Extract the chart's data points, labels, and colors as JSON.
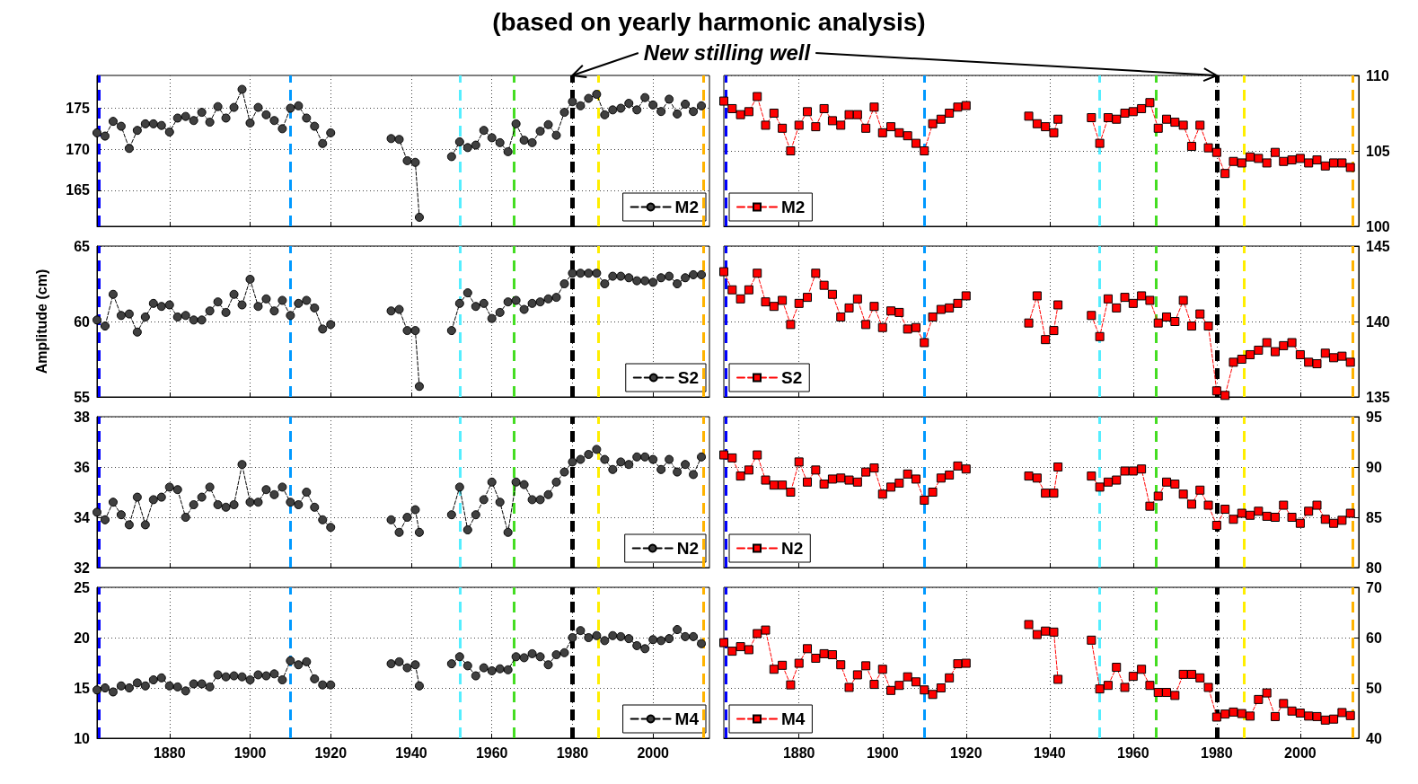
{
  "chart_data": [
    {
      "type": "line",
      "title": "(based on yearly harmonic analysis)",
      "annotations": [
        {
          "text": "New stilling well",
          "x": 1980,
          "y": 179
        }
      ],
      "x": [
        1862,
        1864,
        1866,
        1868,
        1870,
        1872,
        1874,
        1876,
        1878,
        1880,
        1882,
        1884,
        1886,
        1888,
        1890,
        1892,
        1894,
        1896,
        1898,
        1900,
        1902,
        1904,
        1906,
        1908,
        1910,
        1912,
        1914,
        1916,
        1918,
        1920,
        1928,
        1935,
        1937,
        1939,
        1941,
        1942,
        1946,
        1950,
        1952,
        1954,
        1956,
        1958,
        1960,
        1962,
        1964,
        1966,
        1968,
        1970,
        1972,
        1974,
        1976,
        1978,
        1980,
        1982,
        1984,
        1986,
        1988,
        1990,
        1992,
        1994,
        1996,
        1998,
        2000,
        2002,
        2004,
        2006,
        2008,
        2010,
        2012
      ],
      "xlim": [
        1862,
        2014
      ],
      "xticks": [
        1880,
        1900,
        1920,
        1940,
        1960,
        1980,
        2000
      ],
      "ylim": [
        160.6,
        179
      ],
      "yticks": [
        165,
        170,
        175
      ],
      "tick_labels": "y",
      "grid": true,
      "legend": "bottom right",
      "marker": "circle",
      "line_style": "dashed",
      "series": [
        {
          "name": "M2",
          "color": "#404040",
          "values": [
            172,
            171.6,
            173.4,
            172.8,
            170.1,
            172.3,
            173.1,
            173.1,
            172.9,
            172.1,
            173.8,
            174.0,
            173.5,
            174.5,
            173.3,
            175.2,
            173.8,
            175.1,
            177.3,
            173.2,
            175.1,
            174.2,
            173.5,
            172.5,
            175,
            175.3,
            173.8,
            172.8,
            170.7,
            172.0,
            null,
            171.3,
            171.2,
            168.6,
            168.4,
            161.7,
            null,
            169.1,
            170.9,
            170.2,
            170.5,
            172.3,
            171.4,
            170.8,
            169.7,
            173.1,
            171.1,
            170.8,
            172.2,
            173,
            171.7,
            174.5,
            175.8,
            175.3,
            176.2,
            176.7,
            174.2,
            174.8,
            175,
            175.6,
            174.8,
            176.3,
            175.4,
            174.6,
            176.1,
            174.3,
            175.5,
            174.6,
            175.3
          ]
        }
      ],
      "ref_lines": [
        {
          "axis": "x",
          "value": 1862.5,
          "color": "#0000ff",
          "line_style": "dashed"
        },
        {
          "axis": "x",
          "value": 1910,
          "color": "#0099ff",
          "line_style": "dashed"
        },
        {
          "axis": "x",
          "value": 1952,
          "color": "#55eeff",
          "line_style": "dashed"
        },
        {
          "axis": "x",
          "value": 1965.5,
          "color": "#44dd22",
          "line_style": "dashed"
        },
        {
          "axis": "x",
          "value": 1980,
          "color": "#000000",
          "line_style": "dashed"
        },
        {
          "axis": "x",
          "value": 1986.5,
          "color": "#ffee00",
          "line_style": "dashed"
        },
        {
          "axis": "x",
          "value": 2012.5,
          "color": "#ffb300",
          "line_style": "dashed"
        }
      ]
    },
    {
      "type": "line",
      "x": [
        1862,
        1864,
        1866,
        1868,
        1870,
        1872,
        1874,
        1876,
        1878,
        1880,
        1882,
        1884,
        1886,
        1888,
        1890,
        1892,
        1894,
        1896,
        1898,
        1900,
        1902,
        1904,
        1906,
        1908,
        1910,
        1912,
        1914,
        1916,
        1918,
        1920,
        1928,
        1935,
        1937,
        1939,
        1941,
        1942,
        1946,
        1950,
        1952,
        1954,
        1956,
        1958,
        1960,
        1962,
        1964,
        1966,
        1968,
        1970,
        1972,
        1974,
        1976,
        1978,
        1980,
        1982,
        1984,
        1986,
        1988,
        1990,
        1992,
        1994,
        1996,
        1998,
        2000,
        2002,
        2004,
        2006,
        2008,
        2010,
        2012
      ],
      "xlim": [
        1862,
        2014
      ],
      "xticks": [
        1880,
        1900,
        1920,
        1940,
        1960,
        1980,
        2000
      ],
      "ylim": [
        100,
        110
      ],
      "yticks": [
        100,
        105,
        110
      ],
      "tick_labels": "y",
      "grid": true,
      "legend": "bottom left",
      "marker": "square",
      "line_style": "dashed",
      "series": [
        {
          "name": "M2",
          "color": "#ff0000",
          "values": [
            108.3,
            107.8,
            107.4,
            107.6,
            108.6,
            106.7,
            107.5,
            106.5,
            105,
            106.7,
            107.6,
            106.6,
            107.8,
            107,
            106.7,
            107.4,
            107.4,
            106.5,
            107.9,
            106.2,
            106.6,
            106.2,
            106,
            105.5,
            105.0,
            106.8,
            107.1,
            107.5,
            107.9,
            108,
            null,
            107.3,
            106.8,
            106.6,
            106.2,
            107.1,
            null,
            107.2,
            105.5,
            107.2,
            107.1,
            107.5,
            107.6,
            107.8,
            108.2,
            106.5,
            107.1,
            106.9,
            106.7,
            105.3,
            106.7,
            105.2,
            104.9,
            103.5,
            104.3,
            104.2,
            104.6,
            104.5,
            104.2,
            104.9,
            104.3,
            104.4,
            104.5,
            104.2,
            104.4,
            104,
            104.2,
            104.2,
            103.9
          ]
        }
      ],
      "ref_lines": [
        {
          "axis": "x",
          "value": 1862.5,
          "color": "#0000ff",
          "line_style": "dashed"
        },
        {
          "axis": "x",
          "value": 1910,
          "color": "#0099ff",
          "line_style": "dashed"
        },
        {
          "axis": "x",
          "value": 1952,
          "color": "#55eeff",
          "line_style": "dashed"
        },
        {
          "axis": "x",
          "value": 1965.5,
          "color": "#44dd22",
          "line_style": "dashed"
        },
        {
          "axis": "x",
          "value": 1980,
          "color": "#000000",
          "line_style": "dashed"
        },
        {
          "axis": "x",
          "value": 1986.5,
          "color": "#ffee00",
          "line_style": "dashed"
        },
        {
          "axis": "x",
          "value": 2012.5,
          "color": "#ffb300",
          "line_style": "dashed"
        }
      ]
    },
    {
      "type": "line",
      "ylabel": "Amplitude (cm)",
      "x": [
        1862,
        1864,
        1866,
        1868,
        1870,
        1872,
        1874,
        1876,
        1878,
        1880,
        1882,
        1884,
        1886,
        1888,
        1890,
        1892,
        1894,
        1896,
        1898,
        1900,
        1902,
        1904,
        1906,
        1908,
        1910,
        1912,
        1914,
        1916,
        1918,
        1920,
        1928,
        1935,
        1937,
        1939,
        1941,
        1942,
        1946,
        1950,
        1952,
        1954,
        1956,
        1958,
        1960,
        1962,
        1964,
        1966,
        1968,
        1970,
        1972,
        1974,
        1976,
        1978,
        1980,
        1982,
        1984,
        1986,
        1988,
        1990,
        1992,
        1994,
        1996,
        1998,
        2000,
        2002,
        2004,
        2006,
        2008,
        2010,
        2012
      ],
      "xlim": [
        1862,
        2014
      ],
      "xticks": [
        1880,
        1900,
        1920,
        1940,
        1960,
        1980,
        2000
      ],
      "ylim": [
        55,
        65
      ],
      "yticks": [
        55,
        60,
        65
      ],
      "tick_labels": "y",
      "grid": true,
      "legend": "bottom right",
      "marker": "circle",
      "line_style": "dashed",
      "series": [
        {
          "name": "S2",
          "color": "#404040",
          "values": [
            60.1,
            59.7,
            61.8,
            60.4,
            60.5,
            59.3,
            60.3,
            61.2,
            61,
            61.1,
            60.3,
            60.4,
            60.1,
            60.1,
            60.7,
            61.3,
            60.6,
            61.8,
            61.1,
            62.8,
            61,
            61.5,
            60.7,
            61.4,
            60.4,
            61.2,
            61.4,
            60.9,
            59.5,
            59.8,
            null,
            60.7,
            60.8,
            59.4,
            59.4,
            55.7,
            null,
            59.4,
            61.2,
            61.9,
            61,
            61.2,
            60.2,
            60.6,
            61.3,
            61.4,
            60.8,
            61.2,
            61.3,
            61.5,
            61.6,
            62.5,
            63.2,
            63.2,
            63.2,
            63.2,
            62.5,
            63,
            63,
            62.9,
            62.7,
            62.7,
            62.6,
            62.9,
            63,
            62.5,
            62.9,
            63.1,
            63.1
          ]
        }
      ],
      "ref_lines": [
        {
          "axis": "x",
          "value": 1862.5,
          "color": "#0000ff",
          "line_style": "dashed"
        },
        {
          "axis": "x",
          "value": 1910,
          "color": "#0099ff",
          "line_style": "dashed"
        },
        {
          "axis": "x",
          "value": 1952,
          "color": "#55eeff",
          "line_style": "dashed"
        },
        {
          "axis": "x",
          "value": 1965.5,
          "color": "#44dd22",
          "line_style": "dashed"
        },
        {
          "axis": "x",
          "value": 1980,
          "color": "#000000",
          "line_style": "dashed"
        },
        {
          "axis": "x",
          "value": 1986.5,
          "color": "#ffee00",
          "line_style": "dashed"
        },
        {
          "axis": "x",
          "value": 2012.5,
          "color": "#ffb300",
          "line_style": "dashed"
        }
      ]
    },
    {
      "type": "line",
      "x": [
        1862,
        1864,
        1866,
        1868,
        1870,
        1872,
        1874,
        1876,
        1878,
        1880,
        1882,
        1884,
        1886,
        1888,
        1890,
        1892,
        1894,
        1896,
        1898,
        1900,
        1902,
        1904,
        1906,
        1908,
        1910,
        1912,
        1914,
        1916,
        1918,
        1920,
        1928,
        1935,
        1937,
        1939,
        1941,
        1942,
        1946,
        1950,
        1952,
        1954,
        1956,
        1958,
        1960,
        1962,
        1964,
        1966,
        1968,
        1970,
        1972,
        1974,
        1976,
        1978,
        1980,
        1982,
        1984,
        1986,
        1988,
        1990,
        1992,
        1994,
        1996,
        1998,
        2000,
        2002,
        2004,
        2006,
        2008,
        2010,
        2012
      ],
      "xlim": [
        1862,
        2014
      ],
      "xticks": [
        1880,
        1900,
        1920,
        1940,
        1960,
        1980,
        2000
      ],
      "ylim": [
        135,
        145
      ],
      "yticks": [
        135,
        140,
        145
      ],
      "tick_labels": "y",
      "grid": true,
      "legend": "bottom left",
      "marker": "square",
      "line_style": "dashed",
      "series": [
        {
          "name": "S2",
          "color": "#ff0000",
          "values": [
            143.3,
            142.1,
            141.5,
            142.1,
            143.2,
            141.3,
            141.0,
            141.4,
            139.8,
            141.2,
            141.6,
            143.2,
            142.4,
            141.8,
            140.3,
            140.9,
            141.5,
            139.8,
            141.0,
            139.6,
            140.7,
            140.6,
            139.5,
            139.6,
            138.6,
            140.3,
            140.8,
            140.9,
            141.2,
            141.7,
            null,
            139.9,
            141.7,
            138.8,
            139.4,
            141.1,
            null,
            140.4,
            139,
            141.5,
            140.9,
            141.6,
            141.2,
            141.7,
            141.4,
            139.9,
            140.3,
            140,
            141.4,
            139.7,
            140.5,
            139.7,
            135.4,
            135.1,
            137.3,
            137.5,
            137.8,
            138.1,
            138.6,
            138,
            138.4,
            138.6,
            137.8,
            137.3,
            137.2,
            137.9,
            137.6,
            137.7,
            137.3
          ]
        }
      ],
      "ref_lines": [
        {
          "axis": "x",
          "value": 1862.5,
          "color": "#0000ff",
          "line_style": "dashed"
        },
        {
          "axis": "x",
          "value": 1910,
          "color": "#0099ff",
          "line_style": "dashed"
        },
        {
          "axis": "x",
          "value": 1952,
          "color": "#55eeff",
          "line_style": "dashed"
        },
        {
          "axis": "x",
          "value": 1965.5,
          "color": "#44dd22",
          "line_style": "dashed"
        },
        {
          "axis": "x",
          "value": 1980,
          "color": "#000000",
          "line_style": "dashed"
        },
        {
          "axis": "x",
          "value": 1986.5,
          "color": "#ffee00",
          "line_style": "dashed"
        },
        {
          "axis": "x",
          "value": 2012.5,
          "color": "#ffb300",
          "line_style": "dashed"
        }
      ]
    },
    {
      "type": "line",
      "x": [
        1862,
        1864,
        1866,
        1868,
        1870,
        1872,
        1874,
        1876,
        1878,
        1880,
        1882,
        1884,
        1886,
        1888,
        1890,
        1892,
        1894,
        1896,
        1898,
        1900,
        1902,
        1904,
        1906,
        1908,
        1910,
        1912,
        1914,
        1916,
        1918,
        1920,
        1928,
        1935,
        1937,
        1939,
        1941,
        1942,
        1946,
        1950,
        1952,
        1954,
        1956,
        1958,
        1960,
        1962,
        1964,
        1966,
        1968,
        1970,
        1972,
        1974,
        1976,
        1978,
        1980,
        1982,
        1984,
        1986,
        1988,
        1990,
        1992,
        1994,
        1996,
        1998,
        2000,
        2002,
        2004,
        2006,
        2008,
        2010,
        2012
      ],
      "xlim": [
        1862,
        2014
      ],
      "xticks": [
        1880,
        1900,
        1920,
        1940,
        1960,
        1980,
        2000
      ],
      "ylim": [
        32,
        38
      ],
      "yticks": [
        32,
        34,
        36,
        38
      ],
      "tick_labels": "y",
      "grid": true,
      "legend": "bottom right",
      "marker": "circle",
      "line_style": "dashed",
      "series": [
        {
          "name": "N2",
          "color": "#404040",
          "values": [
            34.2,
            33.9,
            34.6,
            34.1,
            33.7,
            34.8,
            33.7,
            34.7,
            34.8,
            35.2,
            35.1,
            34.0,
            34.5,
            34.8,
            35.2,
            34.5,
            34.4,
            34.5,
            36.1,
            34.6,
            34.6,
            35.1,
            34.9,
            35.2,
            34.6,
            34.5,
            35,
            34.4,
            33.9,
            33.6,
            null,
            33.9,
            33.4,
            34,
            34.3,
            33.4,
            null,
            34.1,
            35.2,
            33.5,
            34.1,
            34.7,
            35.4,
            34.6,
            33.4,
            35.4,
            35.3,
            34.7,
            34.7,
            34.9,
            35.4,
            35.8,
            36.2,
            36.3,
            36.5,
            36.7,
            36.3,
            35.9,
            36.2,
            36.1,
            36.4,
            36.4,
            36.3,
            35.9,
            36.3,
            35.8,
            36.1,
            35.7,
            36.4
          ]
        }
      ],
      "ref_lines": [
        {
          "axis": "x",
          "value": 1862.5,
          "color": "#0000ff",
          "line_style": "dashed"
        },
        {
          "axis": "x",
          "value": 1910,
          "color": "#0099ff",
          "line_style": "dashed"
        },
        {
          "axis": "x",
          "value": 1952,
          "color": "#55eeff",
          "line_style": "dashed"
        },
        {
          "axis": "x",
          "value": 1965.5,
          "color": "#44dd22",
          "line_style": "dashed"
        },
        {
          "axis": "x",
          "value": 1980,
          "color": "#000000",
          "line_style": "dashed"
        },
        {
          "axis": "x",
          "value": 1986.5,
          "color": "#ffee00",
          "line_style": "dashed"
        },
        {
          "axis": "x",
          "value": 2012.5,
          "color": "#ffb300",
          "line_style": "dashed"
        }
      ]
    },
    {
      "type": "line",
      "x": [
        1862,
        1864,
        1866,
        1868,
        1870,
        1872,
        1874,
        1876,
        1878,
        1880,
        1882,
        1884,
        1886,
        1888,
        1890,
        1892,
        1894,
        1896,
        1898,
        1900,
        1902,
        1904,
        1906,
        1908,
        1910,
        1912,
        1914,
        1916,
        1918,
        1920,
        1928,
        1935,
        1937,
        1939,
        1941,
        1942,
        1946,
        1950,
        1952,
        1954,
        1956,
        1958,
        1960,
        1962,
        1964,
        1966,
        1968,
        1970,
        1972,
        1974,
        1976,
        1978,
        1980,
        1982,
        1984,
        1986,
        1988,
        1990,
        1992,
        1994,
        1996,
        1998,
        2000,
        2002,
        2004,
        2006,
        2008,
        2010,
        2012
      ],
      "xlim": [
        1862,
        2014
      ],
      "xticks": [
        1880,
        1900,
        1920,
        1940,
        1960,
        1980,
        2000
      ],
      "ylim": [
        80,
        95
      ],
      "yticks": [
        80,
        85,
        90,
        95
      ],
      "tick_labels": "y",
      "grid": true,
      "legend": "bottom left",
      "marker": "square",
      "line_style": "dashed",
      "series": [
        {
          "name": "N2",
          "color": "#ff0000",
          "values": [
            91.2,
            90.9,
            89.1,
            89.7,
            91.2,
            88.7,
            88.2,
            88.2,
            87.5,
            90.5,
            88.5,
            89.7,
            88.3,
            88.8,
            88.9,
            88.7,
            88.5,
            89.5,
            89.9,
            87.3,
            88,
            88.4,
            89.3,
            88.8,
            86.7,
            87.5,
            88.9,
            89.2,
            90.1,
            89.8,
            null,
            89.1,
            88.9,
            87.4,
            87.4,
            90.0,
            null,
            89.1,
            88.0,
            88.5,
            88.7,
            89.6,
            89.6,
            89.8,
            86.1,
            87.1,
            88.5,
            88.3,
            87.3,
            86.3,
            87.7,
            86.2,
            84.2,
            85.8,
            84.8,
            85.4,
            85.2,
            85.6,
            85.1,
            85,
            86.2,
            85,
            84.4,
            85.6,
            86.2,
            84.8,
            84.4,
            84.7,
            85.4
          ]
        }
      ],
      "ref_lines": [
        {
          "axis": "x",
          "value": 1862.5,
          "color": "#0000ff",
          "line_style": "dashed"
        },
        {
          "axis": "x",
          "value": 1910,
          "color": "#0099ff",
          "line_style": "dashed"
        },
        {
          "axis": "x",
          "value": 1952,
          "color": "#55eeff",
          "line_style": "dashed"
        },
        {
          "axis": "x",
          "value": 1965.5,
          "color": "#44dd22",
          "line_style": "dashed"
        },
        {
          "axis": "x",
          "value": 1980,
          "color": "#000000",
          "line_style": "dashed"
        },
        {
          "axis": "x",
          "value": 1986.5,
          "color": "#ffee00",
          "line_style": "dashed"
        },
        {
          "axis": "x",
          "value": 2012.5,
          "color": "#ffb300",
          "line_style": "dashed"
        }
      ]
    },
    {
      "type": "line",
      "x": [
        1862,
        1864,
        1866,
        1868,
        1870,
        1872,
        1874,
        1876,
        1878,
        1880,
        1882,
        1884,
        1886,
        1888,
        1890,
        1892,
        1894,
        1896,
        1898,
        1900,
        1902,
        1904,
        1906,
        1908,
        1910,
        1912,
        1914,
        1916,
        1918,
        1920,
        1928,
        1935,
        1937,
        1939,
        1941,
        1942,
        1946,
        1950,
        1952,
        1954,
        1956,
        1958,
        1960,
        1962,
        1964,
        1966,
        1968,
        1970,
        1972,
        1974,
        1976,
        1978,
        1980,
        1982,
        1984,
        1986,
        1988,
        1990,
        1992,
        1994,
        1996,
        1998,
        2000,
        2002,
        2004,
        2006,
        2008,
        2010,
        2012
      ],
      "xlim": [
        1862,
        2014
      ],
      "xticks": [
        1880,
        1900,
        1920,
        1940,
        1960,
        1980,
        2000
      ],
      "ylim": [
        10,
        25
      ],
      "yticks": [
        10,
        15,
        20,
        25
      ],
      "grid": true,
      "legend": "bottom right",
      "marker": "circle",
      "line_style": "dashed",
      "series": [
        {
          "name": "M4",
          "color": "#404040",
          "values": [
            14.8,
            15.0,
            14.6,
            15.2,
            15,
            15.5,
            15.2,
            15.8,
            16,
            15.2,
            15.1,
            14.7,
            15.4,
            15.4,
            15.1,
            16.3,
            16.1,
            16.2,
            16.1,
            15.8,
            16.3,
            16.2,
            16.4,
            15.8,
            17.7,
            17.3,
            17.6,
            15.9,
            15.3,
            15.3,
            null,
            17.4,
            17.6,
            17.0,
            17.3,
            15.2,
            null,
            17.4,
            18.1,
            17.2,
            16.2,
            17,
            16.7,
            16.9,
            16.8,
            18.1,
            18.0,
            18.4,
            18.1,
            17.3,
            18.3,
            18.5,
            20,
            20.7,
            20.0,
            20.2,
            19.7,
            20.2,
            20.1,
            19.9,
            19.2,
            18.9,
            19.8,
            19.7,
            19.9,
            20.8,
            20.1,
            20.1,
            19.4
          ]
        }
      ],
      "ref_lines": [
        {
          "axis": "x",
          "value": 1862.5,
          "color": "#0000ff",
          "line_style": "dashed"
        },
        {
          "axis": "x",
          "value": 1910,
          "color": "#0099ff",
          "line_style": "dashed"
        },
        {
          "axis": "x",
          "value": 1952,
          "color": "#55eeff",
          "line_style": "dashed"
        },
        {
          "axis": "x",
          "value": 1965.5,
          "color": "#44dd22",
          "line_style": "dashed"
        },
        {
          "axis": "x",
          "value": 1980,
          "color": "#000000",
          "line_style": "dashed"
        },
        {
          "axis": "x",
          "value": 1986.5,
          "color": "#ffee00",
          "line_style": "dashed"
        },
        {
          "axis": "x",
          "value": 2012.5,
          "color": "#ffb300",
          "line_style": "dashed"
        }
      ]
    },
    {
      "type": "line",
      "x": [
        1862,
        1864,
        1866,
        1868,
        1870,
        1872,
        1874,
        1876,
        1878,
        1880,
        1882,
        1884,
        1886,
        1888,
        1890,
        1892,
        1894,
        1896,
        1898,
        1900,
        1902,
        1904,
        1906,
        1908,
        1910,
        1912,
        1914,
        1916,
        1918,
        1920,
        1928,
        1935,
        1937,
        1939,
        1941,
        1942,
        1946,
        1950,
        1952,
        1954,
        1956,
        1958,
        1960,
        1962,
        1964,
        1966,
        1968,
        1970,
        1972,
        1974,
        1976,
        1978,
        1980,
        1982,
        1984,
        1986,
        1988,
        1990,
        1992,
        1994,
        1996,
        1998,
        2000,
        2002,
        2004,
        2006,
        2008,
        2010,
        2012
      ],
      "xlim": [
        1862,
        2014
      ],
      "xticks": [
        1880,
        1900,
        1920,
        1940,
        1960,
        1980,
        2000
      ],
      "ylim": [
        40,
        70
      ],
      "yticks": [
        40,
        50,
        60,
        70
      ],
      "grid": true,
      "legend": "bottom left",
      "marker": "square",
      "line_style": "dashed",
      "series": [
        {
          "name": "M4",
          "color": "#ff0000",
          "values": [
            59,
            57.3,
            58.2,
            57.6,
            60.8,
            61.5,
            53.7,
            54.5,
            50.6,
            54.9,
            57.8,
            55.9,
            56.8,
            56.6,
            54.6,
            50.1,
            52.6,
            54.4,
            50.7,
            53.7,
            49.5,
            50.5,
            52.2,
            51.2,
            49.6,
            48.7,
            50,
            52,
            54.8,
            54.9,
            null,
            62.6,
            60.6,
            61.3,
            61.1,
            51.7,
            null,
            59.5,
            49.8,
            50.5,
            54.1,
            50.1,
            52.3,
            53.7,
            50.5,
            49.1,
            49.1,
            48.5,
            52.7,
            52.7,
            52,
            50.1,
            44.2,
            44.8,
            45.2,
            44.9,
            44.4,
            47.7,
            49,
            44.3,
            46.9,
            45.4,
            45,
            44.4,
            44.3,
            43.6,
            43.8,
            45.1,
            44.5
          ]
        }
      ],
      "ref_lines": [
        {
          "axis": "x",
          "value": 1862.5,
          "color": "#0000ff",
          "line_style": "dashed"
        },
        {
          "axis": "x",
          "value": 1910,
          "color": "#0099ff",
          "line_style": "dashed"
        },
        {
          "axis": "x",
          "value": 1952,
          "color": "#55eeff",
          "line_style": "dashed"
        },
        {
          "axis": "x",
          "value": 1965.5,
          "color": "#44dd22",
          "line_style": "dashed"
        },
        {
          "axis": "x",
          "value": 1980,
          "color": "#000000",
          "line_style": "dashed"
        },
        {
          "axis": "x",
          "value": 1986.5,
          "color": "#ffee00",
          "line_style": "dashed"
        },
        {
          "axis": "x",
          "value": 2012.5,
          "color": "#ffb300",
          "line_style": "dashed"
        }
      ]
    }
  ]
}
